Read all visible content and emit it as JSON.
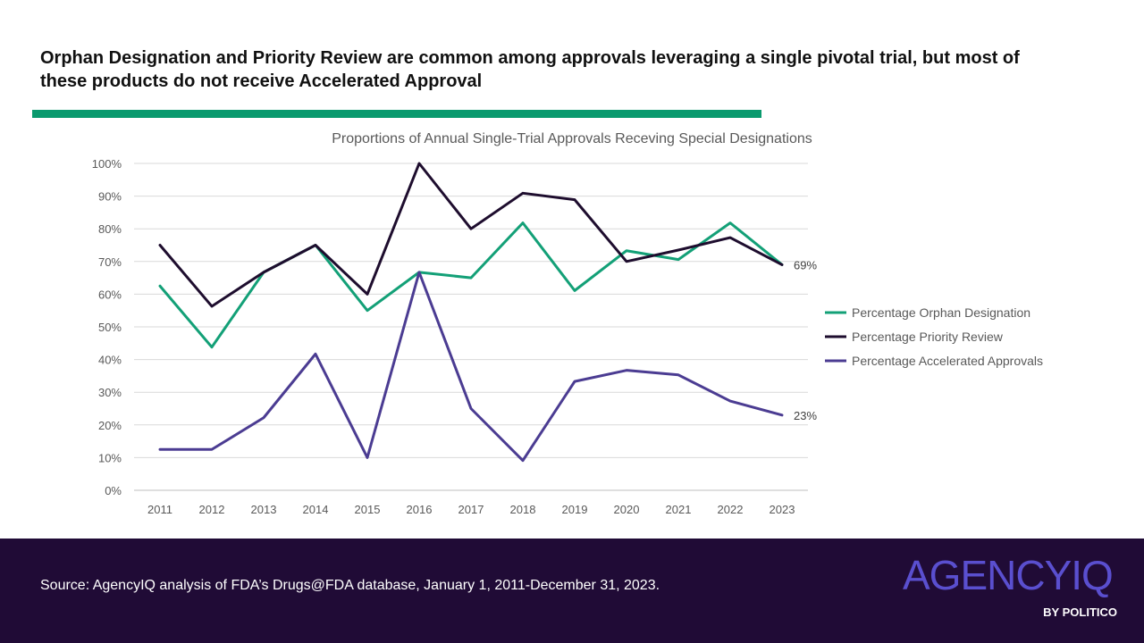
{
  "headline": "Orphan Designation and Priority Review are common among approvals leveraging a single pivotal trial, but most of these products do not receive Accelerated Approval",
  "colors": {
    "accent": "#0a9a6e",
    "footer_bg": "#200b36",
    "logo": "#5a4fcf",
    "orphan": "#13a077",
    "priority": "#1e0d2e",
    "accelerated": "#4b3c92",
    "grid": "#d9d9d9",
    "axis_text": "#595959"
  },
  "chart_data": {
    "type": "line",
    "title": "Proportions of Annual Single-Trial Approvals Receving Special Designations",
    "x": [
      "2011",
      "2012",
      "2013",
      "2014",
      "2015",
      "2016",
      "2017",
      "2018",
      "2019",
      "2020",
      "2021",
      "2022",
      "2023"
    ],
    "ylim": [
      0,
      100
    ],
    "y_ticks": [
      "0%",
      "10%",
      "20%",
      "30%",
      "40%",
      "50%",
      "60%",
      "70%",
      "80%",
      "90%",
      "100%"
    ],
    "grid": true,
    "legend_position": "right",
    "series": [
      {
        "name": "Percentage Orphan Designation",
        "color": "#13a077",
        "values": [
          62.5,
          43.8,
          66.7,
          75.0,
          55.0,
          66.7,
          65.0,
          81.8,
          61.1,
          73.3,
          70.6,
          81.8,
          69.0
        ]
      },
      {
        "name": "Percentage Priority Review",
        "color": "#1e0d2e",
        "values": [
          75.0,
          56.3,
          66.7,
          75.0,
          60.0,
          100.0,
          80.0,
          90.9,
          88.9,
          70.0,
          73.5,
          77.3,
          69.0
        ]
      },
      {
        "name": "Percentage Accelerated Approvals",
        "color": "#4b3c92",
        "values": [
          12.5,
          12.5,
          22.2,
          41.7,
          10.0,
          66.7,
          25.0,
          9.1,
          33.3,
          36.7,
          35.3,
          27.3,
          23.0
        ]
      }
    ],
    "annotations": [
      {
        "series": 1,
        "x": "2023",
        "text": "69%"
      },
      {
        "series": 2,
        "x": "2023",
        "text": "23%"
      }
    ]
  },
  "footer": {
    "source": "Source: AgencyIQ analysis of FDA’s Drugs@FDA database, January 1, 2011-December 31, 2023.",
    "logo_text": "AGENCYIQ",
    "logo_sub": "BY POLITICO"
  }
}
